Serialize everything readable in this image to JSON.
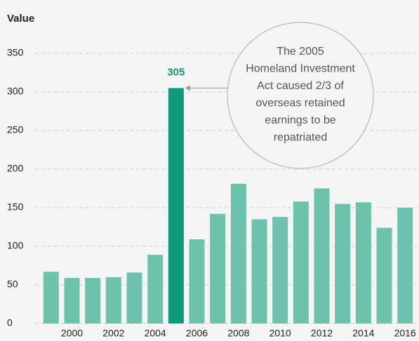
{
  "chart_data": {
    "type": "bar",
    "y_label": "Value",
    "categories": [
      null,
      2000,
      null,
      2002,
      null,
      2004,
      null,
      2006,
      null,
      2008,
      null,
      2010,
      null,
      2012,
      null,
      2014,
      null,
      2016
    ],
    "values": [
      67,
      59,
      59,
      60,
      66,
      89,
      305,
      109,
      142,
      181,
      135,
      138,
      158,
      175,
      155,
      157,
      124,
      150
    ],
    "value_labels": [
      null,
      null,
      null,
      null,
      null,
      null,
      "305",
      null,
      null,
      null,
      null,
      null,
      null,
      null,
      null,
      null,
      null,
      null
    ],
    "colors": [
      "#6cc2ad",
      "#6cc2ad",
      "#6cc2ad",
      "#6cc2ad",
      "#6cc2ad",
      "#6cc2ad",
      "#0e9a7a",
      "#6cc2ad",
      "#6cc2ad",
      "#6cc2ad",
      "#6cc2ad",
      "#6cc2ad",
      "#6cc2ad",
      "#6cc2ad",
      "#6cc2ad",
      "#6cc2ad",
      "#6cc2ad",
      "#6cc2ad"
    ],
    "ylim": [
      0,
      350
    ],
    "yticks": [
      0,
      50,
      100,
      150,
      200,
      250,
      300,
      350
    ],
    "grid": true,
    "annotation": {
      "lines": [
        "The 2005",
        "Homeland Investment",
        "Act caused 2/3 of",
        "overseas retained",
        "earnings to be",
        "repatriated"
      ]
    }
  }
}
